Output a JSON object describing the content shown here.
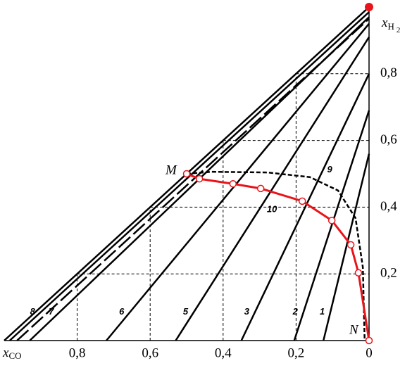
{
  "chart_data": {
    "type": "line",
    "xlabel": {
      "main": "x",
      "sub": "CO"
    },
    "ylabel": {
      "main": "x",
      "sub": "H",
      "subsub": "2"
    },
    "xlim": [
      1,
      0
    ],
    "ylim": [
      0,
      1
    ],
    "xticks": [
      {
        "value": 0.8,
        "label": "0,8"
      },
      {
        "value": 0.6,
        "label": "0,6"
      },
      {
        "value": 0.4,
        "label": "0,4"
      },
      {
        "value": 0.2,
        "label": "0,2"
      },
      0
    ],
    "yticks": [
      {
        "value": 0.2,
        "label": "0,2"
      },
      {
        "value": 0.4,
        "label": "0,4"
      },
      {
        "value": 0.6,
        "label": "0,6"
      },
      {
        "value": 0.8,
        "label": "0,8"
      }
    ],
    "grid": true,
    "apex": {
      "x": 0,
      "y": 1,
      "color": "#e8141a"
    },
    "series": [
      {
        "name": "1",
        "color": "#000000",
        "x": [
          0.125,
          0
        ],
        "values": [
          0,
          0.56
        ]
      },
      {
        "name": "2",
        "color": "#000000",
        "x": [
          0.205,
          0
        ],
        "values": [
          0,
          0.69
        ]
      },
      {
        "name": "3",
        "color": "#000000",
        "x": [
          0.35,
          0
        ],
        "values": [
          0,
          0.8
        ]
      },
      {
        "name": "5",
        "color": "#000000",
        "x": [
          0.53,
          0
        ],
        "values": [
          0,
          0.91
        ]
      },
      {
        "name": "6",
        "color": "#000000",
        "x": [
          0.72,
          0
        ],
        "values": [
          0,
          0.95
        ]
      },
      {
        "name": "7",
        "color": "#000000",
        "x": [
          0.93,
          0
        ],
        "values": [
          0,
          0.97
        ]
      },
      {
        "name": "8",
        "color": "#000000",
        "x": [
          0.985,
          0
        ],
        "values": [
          0,
          0.985
        ]
      },
      {
        "color": "#000000",
        "dash": "long",
        "x": [
          0.965,
          0
        ],
        "values": [
          0,
          0.965
        ]
      },
      {
        "name": "9",
        "color": "#000000",
        "dash": "short",
        "x": [
          0.5,
          0.432,
          0.278,
          0.162,
          0.085,
          0.037,
          0.017,
          0.012
        ],
        "values": [
          0.5,
          0.506,
          0.504,
          0.49,
          0.45,
          0.367,
          0.22,
          0
        ]
      },
      {
        "name": "10",
        "color": "#e8141a",
        "markers": true,
        "endpoint_labels": [
          "M",
          "N"
        ],
        "x": [
          0.5,
          0.465,
          0.373,
          0.297,
          0.183,
          0.102,
          0.05,
          0.029,
          0
        ],
        "values": [
          0.5,
          0.485,
          0.47,
          0.456,
          0.418,
          0.36,
          0.287,
          0.203,
          0
        ]
      }
    ]
  }
}
